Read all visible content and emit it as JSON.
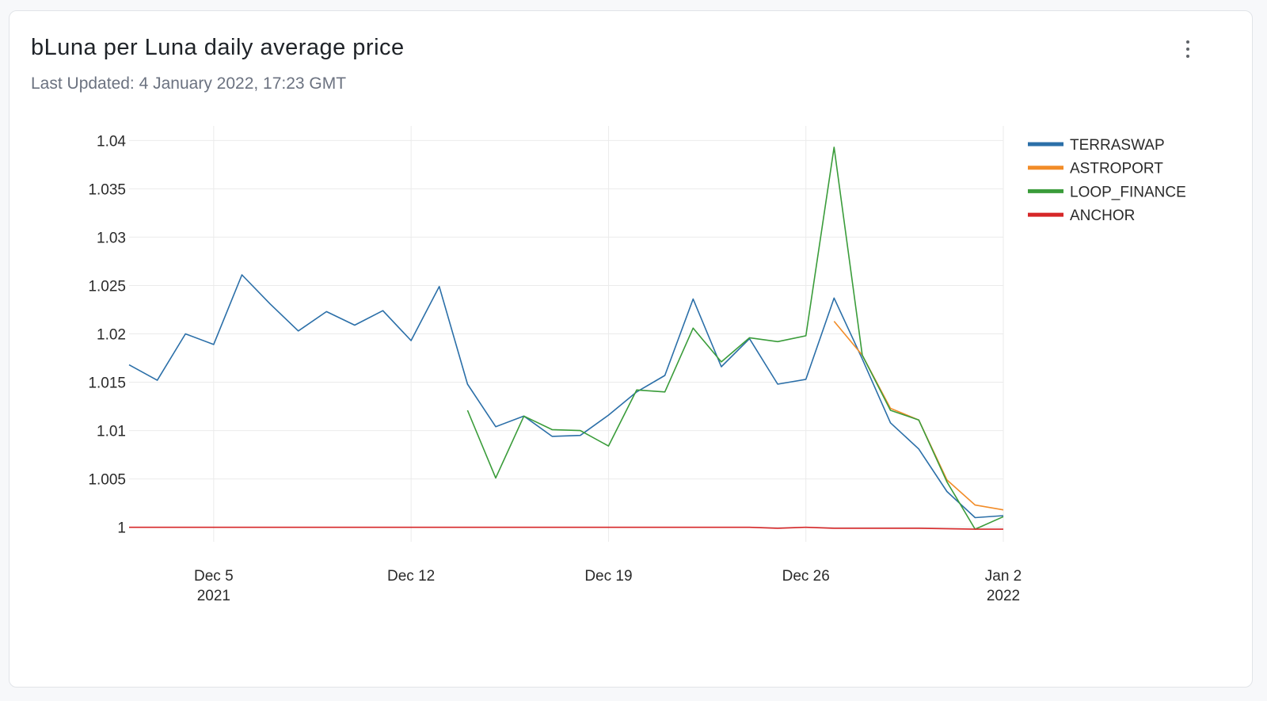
{
  "card": {
    "title": "bLuna per Luna daily average price",
    "subtitle": "Last Updated: 4 January 2022, 17:23 GMT",
    "menu_icon": "more-vertical-icon"
  },
  "chart_data": {
    "type": "line",
    "x_start": "2021-12-02",
    "xlim": [
      "2021-12-02",
      "2022-01-02"
    ],
    "ylim": [
      0.9985,
      1.0415
    ],
    "grid": true,
    "legend_position": "top-right",
    "x_ticks": [
      {
        "date": "2021-12-05",
        "label": "Dec 5",
        "sublabel": "2021"
      },
      {
        "date": "2021-12-12",
        "label": "Dec 12",
        "sublabel": ""
      },
      {
        "date": "2021-12-19",
        "label": "Dec 19",
        "sublabel": ""
      },
      {
        "date": "2021-12-26",
        "label": "Dec 26",
        "sublabel": ""
      },
      {
        "date": "2022-01-02",
        "label": "Jan 2",
        "sublabel": "2022"
      }
    ],
    "y_ticks": [
      {
        "value": 1,
        "label": "1"
      },
      {
        "value": 1.005,
        "label": "1.005"
      },
      {
        "value": 1.01,
        "label": "1.01"
      },
      {
        "value": 1.015,
        "label": "1.015"
      },
      {
        "value": 1.02,
        "label": "1.02"
      },
      {
        "value": 1.025,
        "label": "1.025"
      },
      {
        "value": 1.03,
        "label": "1.03"
      },
      {
        "value": 1.035,
        "label": "1.035"
      },
      {
        "value": 1.04,
        "label": "1.04"
      }
    ],
    "series": [
      {
        "name": "TERRASWAP",
        "color": "#2b6fa8",
        "points": [
          [
            "2021-12-02",
            1.0168
          ],
          [
            "2021-12-03",
            1.0152
          ],
          [
            "2021-12-04",
            1.02
          ],
          [
            "2021-12-05",
            1.0189
          ],
          [
            "2021-12-06",
            1.0261
          ],
          [
            "2021-12-07",
            1.0231
          ],
          [
            "2021-12-08",
            1.0203
          ],
          [
            "2021-12-09",
            1.0223
          ],
          [
            "2021-12-10",
            1.0209
          ],
          [
            "2021-12-11",
            1.0224
          ],
          [
            "2021-12-12",
            1.0193
          ],
          [
            "2021-12-13",
            1.0249
          ],
          [
            "2021-12-14",
            1.0148
          ],
          [
            "2021-12-15",
            1.0104
          ],
          [
            "2021-12-16",
            1.0115
          ],
          [
            "2021-12-17",
            1.0094
          ],
          [
            "2021-12-18",
            1.0095
          ],
          [
            "2021-12-19",
            1.0116
          ],
          [
            "2021-12-20",
            1.014
          ],
          [
            "2021-12-21",
            1.0157
          ],
          [
            "2021-12-22",
            1.0236
          ],
          [
            "2021-12-23",
            1.0166
          ],
          [
            "2021-12-24",
            1.0195
          ],
          [
            "2021-12-25",
            1.0148
          ],
          [
            "2021-12-26",
            1.0153
          ],
          [
            "2021-12-27",
            1.0237
          ],
          [
            "2021-12-28",
            1.0174
          ],
          [
            "2021-12-29",
            1.0108
          ],
          [
            "2021-12-30",
            1.0081
          ],
          [
            "2021-12-31",
            1.0037
          ],
          [
            "2022-01-01",
            1.001
          ],
          [
            "2022-01-02",
            1.0012
          ]
        ]
      },
      {
        "name": "ASTROPORT",
        "color": "#f28c28",
        "points": [
          [
            "2021-12-27",
            1.0213
          ],
          [
            "2021-12-28",
            1.0178
          ],
          [
            "2021-12-29",
            1.0123
          ],
          [
            "2021-12-30",
            1.0111
          ],
          [
            "2021-12-31",
            1.0049
          ],
          [
            "2022-01-01",
            1.0023
          ],
          [
            "2022-01-02",
            1.0018
          ]
        ]
      },
      {
        "name": "LOOP_FINANCE",
        "color": "#3a9c3a",
        "points": [
          [
            "2021-12-14",
            1.0121
          ],
          [
            "2021-12-15",
            1.0051
          ],
          [
            "2021-12-16",
            1.0115
          ],
          [
            "2021-12-17",
            1.0101
          ],
          [
            "2021-12-18",
            1.01
          ],
          [
            "2021-12-19",
            1.0084
          ],
          [
            "2021-12-20",
            1.0142
          ],
          [
            "2021-12-21",
            1.014
          ],
          [
            "2021-12-22",
            1.0206
          ],
          [
            "2021-12-23",
            1.0171
          ],
          [
            "2021-12-24",
            1.0196
          ],
          [
            "2021-12-25",
            1.0192
          ],
          [
            "2021-12-26",
            1.0198
          ],
          [
            "2021-12-27",
            1.0393
          ],
          [
            "2021-12-28",
            1.0178
          ],
          [
            "2021-12-29",
            1.0121
          ],
          [
            "2021-12-30",
            1.0111
          ],
          [
            "2021-12-31",
            1.0047
          ],
          [
            "2022-01-01",
            0.9998
          ],
          [
            "2022-01-02",
            1.0011
          ]
        ]
      },
      {
        "name": "ANCHOR",
        "color": "#d62728",
        "points": [
          [
            "2021-12-02",
            1.0
          ],
          [
            "2021-12-05",
            1.0
          ],
          [
            "2021-12-08",
            1.0
          ],
          [
            "2021-12-11",
            1.0
          ],
          [
            "2021-12-14",
            1.0
          ],
          [
            "2021-12-17",
            1.0
          ],
          [
            "2021-12-20",
            1.0
          ],
          [
            "2021-12-23",
            1.0
          ],
          [
            "2021-12-24",
            1.0
          ],
          [
            "2021-12-25",
            0.9999
          ],
          [
            "2021-12-26",
            1.0
          ],
          [
            "2021-12-27",
            0.9999
          ],
          [
            "2021-12-30",
            0.9999
          ],
          [
            "2022-01-01",
            0.9998
          ],
          [
            "2022-01-02",
            0.9998
          ]
        ]
      }
    ]
  }
}
